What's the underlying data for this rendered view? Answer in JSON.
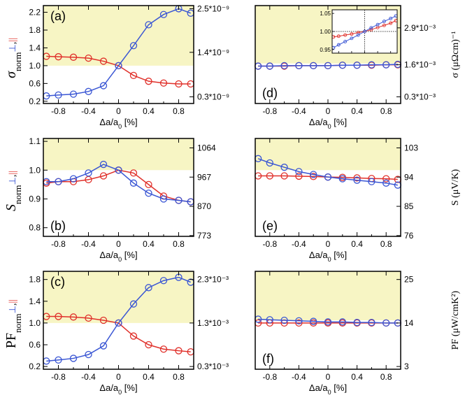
{
  "colors": {
    "blue": "#3a56d4",
    "red": "#e0302a",
    "shade": "#f7f5c4"
  },
  "x_axis_label": {
    "pre": "Δa/a",
    "sub": "0",
    "post": " [%]"
  },
  "x_ticks": [
    "-0.8",
    "-0.4",
    "0",
    "0.4",
    "0.8"
  ],
  "y_left_labels": {
    "sigma": {
      "main": "σ",
      "sub": "norm",
      "perp": "⊥",
      "sep": ",",
      "par": "||"
    },
    "S": {
      "main": "S",
      "sub": "norm",
      "perp": "⊥",
      "sep": ",",
      "par": "||"
    },
    "PF": {
      "main": "PF",
      "sub": "norm",
      "perp": "⊥",
      "sep": ",",
      "par": "||"
    }
  },
  "y_right_labels": {
    "sigma": "σ (μΩcm)⁻¹",
    "S": "S (μV/K)",
    "PF": "PF (μW/cmK²)"
  },
  "chart_data": [
    {
      "id": "a",
      "label": "(a)",
      "type": "line",
      "xlim": [
        -1.0,
        1.0
      ],
      "ylim": [
        0.15,
        2.35
      ],
      "shade_from": 1.0,
      "yticks": [
        0.2,
        0.6,
        1.0,
        1.4,
        1.8,
        2.2
      ],
      "yticklabels": [
        "0.2",
        "0.6",
        "1.0",
        "1.4",
        "1.8",
        "2.2"
      ],
      "right_ticks": [
        {
          "y": 0.3,
          "label": "0.3*10⁻⁹"
        },
        {
          "y": 1.3,
          "label": "1.4*10⁻⁹"
        },
        {
          "y": 2.28,
          "label": "2.5*10⁻⁹"
        }
      ],
      "x": [
        -0.96,
        -0.8,
        -0.6,
        -0.4,
        -0.2,
        0.0,
        0.2,
        0.4,
        0.6,
        0.8,
        0.96
      ],
      "series": [
        {
          "name": "⊥",
          "color": "blue",
          "values": [
            0.32,
            0.34,
            0.36,
            0.42,
            0.55,
            1.0,
            1.45,
            1.92,
            2.15,
            2.28,
            2.18
          ]
        },
        {
          "name": "||",
          "color": "red",
          "values": [
            1.21,
            1.2,
            1.19,
            1.17,
            1.1,
            1.0,
            0.78,
            0.65,
            0.61,
            0.59,
            0.59
          ]
        }
      ]
    },
    {
      "id": "b",
      "label": "(b)",
      "type": "line",
      "xlim": [
        -1.0,
        1.0
      ],
      "ylim": [
        0.77,
        1.11
      ],
      "shade_from": 1.0,
      "yticks": [
        0.8,
        0.9,
        1.0,
        1.1
      ],
      "yticklabels": [
        "0.8",
        "0.9",
        "1.0",
        "1.1"
      ],
      "right_ticks": [
        {
          "y": 0.7727,
          "label": "773"
        },
        {
          "y": 0.8743,
          "label": "870"
        },
        {
          "y": 0.9758,
          "label": "967"
        },
        {
          "y": 1.0773,
          "label": "1064"
        }
      ],
      "x": [
        -0.96,
        -0.8,
        -0.6,
        -0.4,
        -0.2,
        0.0,
        0.2,
        0.4,
        0.6,
        0.8,
        0.96
      ],
      "series": [
        {
          "name": "⊥",
          "color": "blue",
          "values": [
            0.96,
            0.96,
            0.97,
            0.99,
            1.02,
            1.0,
            0.955,
            0.92,
            0.9,
            0.895,
            0.89
          ]
        },
        {
          "name": "||",
          "color": "red",
          "values": [
            0.955,
            0.96,
            0.96,
            0.967,
            0.98,
            1.0,
            0.99,
            0.95,
            0.91,
            0.895,
            0.89
          ]
        }
      ]
    },
    {
      "id": "c",
      "label": "(c)",
      "type": "line",
      "xlim": [
        -1.0,
        1.0
      ],
      "ylim": [
        0.15,
        1.95
      ],
      "shade_from": 1.0,
      "yticks": [
        0.2,
        0.6,
        1.0,
        1.4,
        1.8
      ],
      "yticklabels": [
        "0.2",
        "0.6",
        "1.0",
        "1.4",
        "1.8"
      ],
      "right_ticks": [
        {
          "y": 0.2,
          "label": "0.3*10⁻³"
        },
        {
          "y": 1.0,
          "label": "1.3*10⁻³"
        },
        {
          "y": 1.8,
          "label": "2.3*10⁻³"
        }
      ],
      "x": [
        -0.96,
        -0.8,
        -0.6,
        -0.4,
        -0.2,
        0.0,
        0.2,
        0.4,
        0.6,
        0.8,
        0.96
      ],
      "series": [
        {
          "name": "⊥",
          "color": "blue",
          "values": [
            0.3,
            0.32,
            0.35,
            0.42,
            0.58,
            1.0,
            1.35,
            1.65,
            1.78,
            1.84,
            1.75
          ]
        },
        {
          "name": "||",
          "color": "red",
          "values": [
            1.12,
            1.12,
            1.11,
            1.09,
            1.05,
            1.0,
            0.76,
            0.6,
            0.52,
            0.49,
            0.47
          ]
        }
      ]
    },
    {
      "id": "d",
      "label": "(d)",
      "type": "line",
      "xlim": [
        -1.0,
        1.0
      ],
      "ylim": [
        0.15,
        2.35
      ],
      "shade_from": 1.05,
      "yticks": [],
      "yticklabels": [],
      "right_ticks": [
        {
          "y": 0.3,
          "label": "0.3*10⁻³"
        },
        {
          "y": 1.02,
          "label": "1.6*10⁻³"
        },
        {
          "y": 1.85,
          "label": "2.9*10⁻³"
        }
      ],
      "x": [
        -0.96,
        -0.8,
        -0.6,
        -0.4,
        -0.2,
        0.0,
        0.2,
        0.4,
        0.6,
        0.8,
        0.96
      ],
      "series": [
        {
          "name": "⊥",
          "color": "blue",
          "values": [
            0.99,
            0.99,
            1.0,
            1.0,
            1.0,
            1.0,
            1.01,
            1.01,
            1.02,
            1.02,
            1.03
          ]
        },
        {
          "name": "||",
          "color": "red",
          "values": [
            0.99,
            0.99,
            0.99,
            1.0,
            1.0,
            1.0,
            1.01,
            1.01,
            1.01,
            1.02,
            1.02
          ]
        }
      ],
      "inset": {
        "xlim": [
          -1.0,
          1.0
        ],
        "ylim": [
          0.94,
          1.06
        ],
        "yticks": [
          0.95,
          1.0,
          1.05
        ],
        "yticklabels": [
          "0.95",
          "1.00",
          "1.05"
        ],
        "x": [
          -0.96,
          -0.8,
          -0.6,
          -0.4,
          -0.2,
          0.0,
          0.2,
          0.4,
          0.6,
          0.8,
          0.96
        ],
        "series": [
          {
            "name": "⊥",
            "color": "blue",
            "values": [
              0.955,
              0.963,
              0.972,
              0.981,
              0.99,
              1.0,
              1.01,
              1.019,
              1.028,
              1.036,
              1.043
            ]
          },
          {
            "name": "||",
            "color": "red",
            "values": [
              0.985,
              0.987,
              0.99,
              0.993,
              0.997,
              1.0,
              1.005,
              1.011,
              1.017,
              1.023,
              1.03
            ]
          }
        ]
      }
    },
    {
      "id": "e",
      "label": "(e)",
      "type": "line",
      "xlim": [
        -1.0,
        1.0
      ],
      "ylim": [
        0.77,
        1.11
      ],
      "shade_from": 1.0,
      "yticks": [],
      "yticklabels": [],
      "right_ticks": [
        {
          "y": 0.7727,
          "label": "76"
        },
        {
          "y": 0.8743,
          "label": "85"
        },
        {
          "y": 0.9758,
          "label": "94"
        },
        {
          "y": 1.0773,
          "label": "103"
        }
      ],
      "x": [
        -0.96,
        -0.8,
        -0.6,
        -0.4,
        -0.2,
        0.0,
        0.2,
        0.4,
        0.6,
        0.8,
        0.96
      ],
      "series": [
        {
          "name": "⊥",
          "color": "blue",
          "values": [
            1.04,
            1.025,
            1.01,
            0.995,
            0.985,
            0.976,
            0.97,
            0.965,
            0.96,
            0.955,
            0.948
          ]
        },
        {
          "name": "||",
          "color": "red",
          "values": [
            0.98,
            0.98,
            0.98,
            0.979,
            0.978,
            0.976,
            0.975,
            0.973,
            0.971,
            0.97,
            0.968
          ]
        }
      ]
    },
    {
      "id": "f",
      "label": "(f)",
      "type": "line",
      "xlim": [
        -1.0,
        1.0
      ],
      "ylim": [
        0.15,
        1.95
      ],
      "shade_from": 1.05,
      "yticks": [],
      "yticklabels": [],
      "right_ticks": [
        {
          "y": 0.2,
          "label": "3"
        },
        {
          "y": 1.0,
          "label": "14"
        },
        {
          "y": 1.8,
          "label": "25"
        }
      ],
      "x": [
        -0.96,
        -0.8,
        -0.6,
        -0.4,
        -0.2,
        0.0,
        0.2,
        0.4,
        0.6,
        0.8,
        0.96
      ],
      "series": [
        {
          "name": "⊥",
          "color": "blue",
          "values": [
            1.07,
            1.06,
            1.05,
            1.04,
            1.03,
            1.02,
            1.02,
            1.01,
            1.01,
            1.0,
            1.0
          ]
        },
        {
          "name": "||",
          "color": "red",
          "values": [
            1.0,
            1.0,
            1.0,
            1.0,
            1.0,
            1.0,
            1.0,
            1.0,
            1.0,
            1.0,
            1.0
          ]
        }
      ]
    }
  ]
}
